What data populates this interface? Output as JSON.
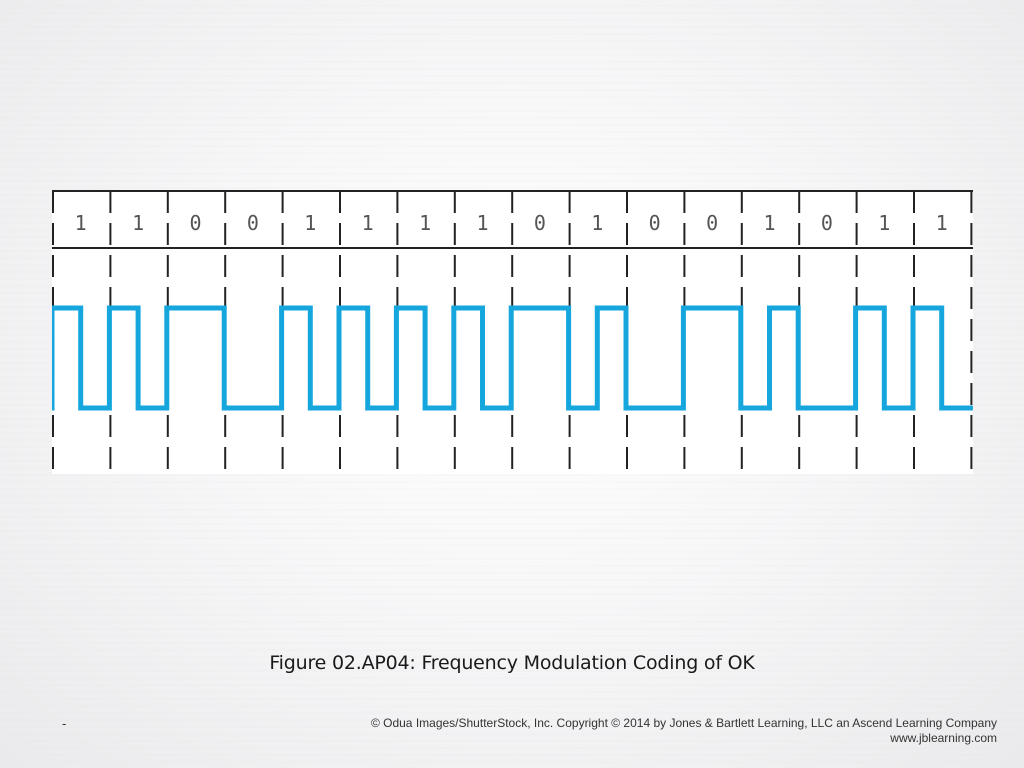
{
  "figure": {
    "bits": [
      "1",
      "1",
      "0",
      "0",
      "1",
      "1",
      "1",
      "1",
      "0",
      "1",
      "0",
      "0",
      "1",
      "0",
      "1",
      "1"
    ],
    "signal_color": "#14a6dc",
    "signal": {
      "levels": [
        "low",
        "high"
      ],
      "encoding_note_in_image": false
    }
  },
  "caption": "Figure 02.AP04: Frequency Modulation Coding of OK",
  "footer": {
    "slide_marker": "-",
    "copyright_line1": "© Odua Images/ShutterStock, Inc. Copyright © 2014 by Jones & Bartlett Learning, LLC an Ascend Learning Company",
    "copyright_line2": "www.jblearning.com"
  }
}
